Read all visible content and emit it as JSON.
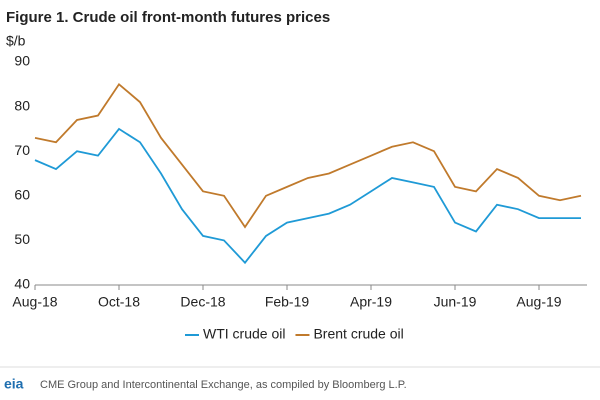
{
  "chart_data": {
    "type": "line",
    "title": "Figure 1. Crude oil front-month futures prices",
    "y_label": "$/b",
    "categories": [
      "Aug-18",
      null,
      null,
      null,
      "Oct-18",
      null,
      null,
      null,
      "Dec-18",
      null,
      null,
      null,
      "Feb-19",
      null,
      null,
      null,
      "Apr-19",
      null,
      null,
      null,
      "Jun-19",
      null,
      null,
      null,
      "Aug-19",
      null,
      null
    ],
    "series": [
      {
        "name": "WTI crude oil",
        "color": "#1f9ad6",
        "values": [
          68,
          66,
          70,
          69,
          75,
          72,
          65,
          57,
          51,
          50,
          45,
          51,
          54,
          55,
          56,
          58,
          61,
          64,
          63,
          62,
          54,
          52,
          58,
          57,
          55,
          55,
          55
        ]
      },
      {
        "name": "Brent crude oil",
        "color": "#c07a2c",
        "values": [
          73,
          72,
          77,
          78,
          85,
          81,
          73,
          67,
          61,
          60,
          53,
          60,
          62,
          64,
          65,
          67,
          69,
          71,
          72,
          70,
          62,
          61,
          66,
          64,
          60,
          59,
          60
        ]
      }
    ],
    "ylim": [
      40,
      90
    ],
    "yticks": [
      40,
      50,
      60,
      70,
      80,
      90
    ],
    "legend": "bottom",
    "source": "CME Group and Intercontinental Exchange, as compiled by Bloomberg L.P.",
    "logo": "eia"
  }
}
